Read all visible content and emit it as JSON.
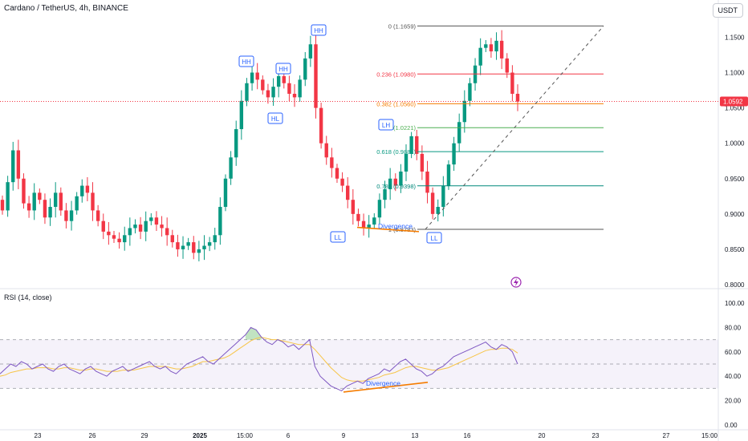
{
  "header": {
    "title": "Cardano / TetherUS, 4h, BINANCE",
    "currency": "USDT"
  },
  "rsi": {
    "title": "RSI (14, close)",
    "levels": [
      "100.00",
      "80.00",
      "60.00",
      "40.00",
      "20.00",
      "0.00"
    ]
  },
  "price_axis": {
    "ticks": [
      "1.1500",
      "1.1000",
      "1.0500",
      "1.0000",
      "0.9500",
      "0.9000",
      "0.8500",
      "0.8000"
    ],
    "last_price": "1.0592"
  },
  "time_axis": {
    "ticks": [
      "23",
      "26",
      "29",
      "2025",
      "15:00",
      "6",
      "9",
      "13",
      "16",
      "20",
      "23",
      "27",
      "15:00"
    ]
  },
  "fib_labels": [
    "0 (1.1659)",
    "0.236 (1.0980)",
    "0.382 (1.0560)",
    "0.5 (1.0221)",
    "0.618 (0.9881)",
    "0.786 (0.9398)",
    "1 (0.8783)"
  ],
  "annotations": [
    "HH",
    "HH",
    "HH",
    "HL",
    "LH",
    "LL",
    "LL",
    "Divergence",
    "Divergence"
  ],
  "colors": {
    "up": "#089981",
    "down": "#f23645",
    "rsi_line": "#7e57c2",
    "rsi_ma": "#f7c548",
    "divergence": "#f57c00"
  },
  "chart_data": [
    {
      "type": "candlestick",
      "title": "Cardano / TetherUS, 4h, BINANCE",
      "ylim": [
        0.8,
        1.18
      ],
      "ohlc_closes": [
        0.905,
        0.945,
        0.99,
        0.95,
        0.915,
        0.905,
        0.93,
        0.92,
        0.895,
        0.91,
        0.93,
        0.905,
        0.89,
        0.905,
        0.925,
        0.94,
        0.93,
        0.905,
        0.89,
        0.875,
        0.87,
        0.865,
        0.86,
        0.87,
        0.88,
        0.885,
        0.875,
        0.89,
        0.895,
        0.885,
        0.88,
        0.87,
        0.86,
        0.85,
        0.855,
        0.86,
        0.845,
        0.85,
        0.855,
        0.86,
        0.87,
        0.91,
        0.95,
        0.98,
        1.02,
        1.06,
        1.085,
        1.1,
        1.09,
        1.075,
        1.065,
        1.08,
        1.095,
        1.085,
        1.07,
        1.065,
        1.09,
        1.12,
        1.14,
        1.05,
        1.0,
        0.98,
        0.965,
        0.95,
        0.94,
        0.92,
        0.9,
        0.89,
        0.88,
        0.885,
        0.895,
        0.92,
        0.935,
        0.95,
        0.94,
        0.96,
        0.985,
        1.01,
        0.985,
        0.96,
        0.93,
        0.9,
        0.91,
        0.94,
        0.97,
        1.0,
        1.03,
        1.06,
        1.085,
        1.11,
        1.135,
        1.14,
        1.13,
        1.145,
        1.12,
        1.1,
        1.07,
        1.059
      ],
      "fibonacci": [
        {
          "level": "0",
          "price": 1.1659
        },
        {
          "level": "0.236",
          "price": 1.098
        },
        {
          "level": "0.382",
          "price": 1.056
        },
        {
          "level": "0.5",
          "price": 1.0221
        },
        {
          "level": "0.618",
          "price": 0.9881
        },
        {
          "level": "0.786",
          "price": 0.9398
        },
        {
          "level": "1",
          "price": 0.8783
        }
      ],
      "last_price": 1.0592
    },
    {
      "type": "line",
      "title": "RSI (14, close)",
      "ylim": [
        0,
        100
      ],
      "bands": [
        30,
        70
      ],
      "series": [
        {
          "values": [
            42,
            46,
            50,
            48,
            52,
            50,
            46,
            48,
            50,
            46,
            44,
            48,
            50,
            46,
            44,
            42,
            46,
            48,
            44,
            42,
            40,
            44,
            46,
            48,
            44,
            46,
            48,
            50,
            52,
            48,
            46,
            48,
            44,
            42,
            46,
            50,
            52,
            54,
            56,
            52,
            50,
            54,
            58,
            62,
            66,
            70,
            74,
            80,
            78,
            72,
            68,
            66,
            70,
            68,
            64,
            66,
            62,
            66,
            70,
            48,
            40,
            36,
            32,
            30,
            28,
            32,
            34,
            36,
            34,
            38,
            40,
            42,
            46,
            44,
            48,
            52,
            54,
            50,
            46,
            44,
            40,
            42,
            46,
            48,
            52,
            56,
            58,
            60,
            62,
            64,
            66,
            68,
            64,
            62,
            66,
            64,
            60,
            50
          ]
        },
        {
          "values": [
            40,
            41,
            43,
            44,
            45,
            46,
            46,
            47,
            47,
            47,
            46,
            46,
            47,
            47,
            46,
            45,
            45,
            46,
            46,
            45,
            44,
            44,
            44,
            45,
            45,
            45,
            46,
            47,
            48,
            48,
            48,
            48,
            47,
            46,
            46,
            47,
            48,
            50,
            52,
            52,
            53,
            54,
            55,
            57,
            60,
            63,
            66,
            69,
            71,
            72,
            71,
            70,
            70,
            69,
            68,
            67,
            66,
            66,
            66,
            62,
            57,
            52,
            47,
            43,
            39,
            37,
            36,
            36,
            36,
            37,
            38,
            39,
            41,
            42,
            43,
            45,
            47,
            48,
            48,
            47,
            46,
            45,
            45,
            46,
            47,
            49,
            51,
            53,
            55,
            57,
            59,
            61,
            62,
            62,
            63,
            63,
            62,
            59
          ]
        }
      ]
    }
  ]
}
